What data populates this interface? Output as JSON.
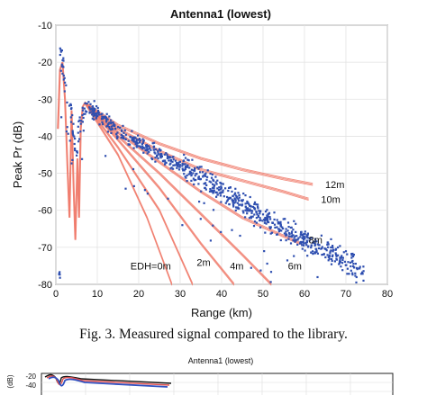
{
  "figure1": {
    "caption": "Fig. 3. Measured signal compared to the library.",
    "chart_data": {
      "type": "scatter",
      "title": "Antenna1 (lowest)",
      "xlabel": "Range (km)",
      "ylabel": "Peak Pr (dB)",
      "xlim": [
        0,
        80
      ],
      "ylim": [
        -80,
        -10
      ],
      "x_ticks": [
        0,
        10,
        20,
        30,
        40,
        50,
        60,
        70,
        80
      ],
      "y_ticks": [
        -10,
        -20,
        -30,
        -40,
        -50,
        -60,
        -70,
        -80
      ],
      "grid": true,
      "colors": {
        "measured": "#2f4fb0",
        "library": "#f07a6a"
      },
      "library_curves": [
        {
          "label": "12m",
          "label_at": [
            65,
            -54
          ],
          "points": [
            [
              7,
              -31
            ],
            [
              15,
              -37
            ],
            [
              25,
              -42
            ],
            [
              35,
              -46
            ],
            [
              45,
              -49
            ],
            [
              55,
              -51.5
            ],
            [
              62,
              -53
            ]
          ]
        },
        {
          "label": "10m",
          "label_at": [
            64,
            -58
          ],
          "points": [
            [
              7,
              -31
            ],
            [
              15,
              -38
            ],
            [
              25,
              -44
            ],
            [
              35,
              -49
            ],
            [
              45,
              -52
            ],
            [
              55,
              -55
            ],
            [
              61,
              -57
            ]
          ]
        },
        {
          "label": "8m",
          "label_at": [
            61,
            -69
          ],
          "points": [
            [
              7,
              -31
            ],
            [
              15,
              -39
            ],
            [
              25,
              -47
            ],
            [
              35,
              -55
            ],
            [
              45,
              -62
            ],
            [
              55,
              -67
            ],
            [
              59,
              -69
            ]
          ]
        },
        {
          "label": "6m",
          "label_at": [
            56,
            -76
          ],
          "points": [
            [
              7,
              -31
            ],
            [
              15,
              -40
            ],
            [
              25,
              -50
            ],
            [
              35,
              -61
            ],
            [
              45,
              -72
            ],
            [
              52,
              -80
            ]
          ]
        },
        {
          "label": "4m",
          "label_at": [
            42,
            -76
          ],
          "points": [
            [
              7,
              -31
            ],
            [
              15,
              -41
            ],
            [
              25,
              -54
            ],
            [
              35,
              -69
            ],
            [
              43,
              -80
            ]
          ]
        },
        {
          "label": "2m",
          "label_at": [
            34,
            -75
          ],
          "points": [
            [
              7,
              -31
            ],
            [
              15,
              -43
            ],
            [
              25,
              -60
            ],
            [
              33,
              -80
            ]
          ]
        },
        {
          "label": "EDH=0m",
          "label_at": [
            18,
            -76
          ],
          "points": [
            [
              7,
              -31
            ],
            [
              15,
              -45
            ],
            [
              22,
              -62
            ],
            [
              28,
              -80
            ]
          ]
        }
      ],
      "measured_trend": {
        "x": [
          1,
          1.5,
          2,
          2.5,
          3,
          3.5,
          4,
          5,
          6,
          8,
          10,
          15,
          20,
          25,
          30,
          35,
          40,
          45,
          50,
          55,
          60,
          65,
          70,
          74
        ],
        "y": [
          -17,
          -21,
          -24,
          -28,
          -35,
          -30,
          -37,
          -45,
          -35,
          -32,
          -34,
          -39,
          -42,
          -45,
          -48,
          -51,
          -55,
          -58,
          -62,
          -65,
          -68,
          -71,
          -74,
          -77
        ]
      }
    }
  },
  "figure2": {
    "chart_data": {
      "type": "line",
      "title": "Antenna1 (lowest)",
      "ylabel": "(dB)",
      "y_ticks": [
        -20,
        -40
      ]
    }
  }
}
